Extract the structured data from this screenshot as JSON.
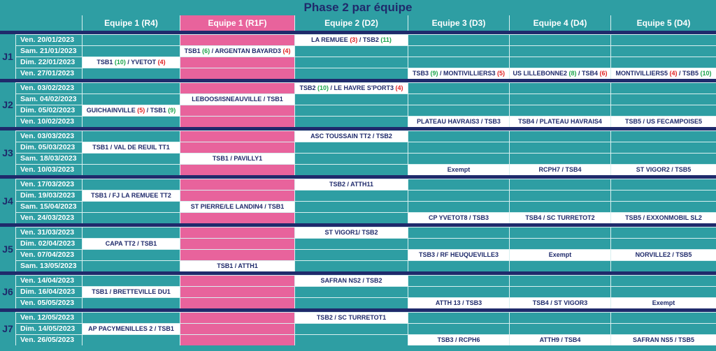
{
  "title": "Phase 2 par équipe",
  "headers": [
    "Equipe 1 (R4)",
    "Equipe 1 (R1F)",
    "Equipe 2 (D2)",
    "Equipe 3 (D3)",
    "Equipe 4 (D4)",
    "Equipe 5 (D4)"
  ],
  "colors": {
    "teal": "#2e9ea3",
    "pink": "#e8639c",
    "navy": "#1f2a6b",
    "win": "#1aa34a",
    "loss": "#e02020"
  },
  "groups": [
    {
      "label": "J1",
      "rows": [
        {
          "date": "Ven. 20/01/2023",
          "cells": [
            "",
            "",
            {
              "t": "LA REMUEE (3) / TSB2 (11)",
              "parts": [
                [
                  "LA REMUEE ",
                  ""
                ],
                [
                  "(3)",
                  "loss"
                ],
                [
                  " / TSB2 ",
                  ""
                ],
                [
                  "(11)",
                  "win"
                ]
              ]
            },
            "",
            "",
            ""
          ]
        },
        {
          "date": "Sam. 21/01/2023",
          "cells": [
            "",
            {
              "t": "TSB1 (6) / ARGENTAN BAYARD3 (4)",
              "parts": [
                [
                  "TSB1 ",
                  ""
                ],
                [
                  "(6)",
                  "win"
                ],
                [
                  " / ARGENTAN BAYARD3 ",
                  ""
                ],
                [
                  "(4)",
                  "loss"
                ]
              ]
            },
            "",
            "",
            "",
            ""
          ]
        },
        {
          "date": "Dim. 22/01/2023",
          "cells": [
            {
              "t": "TSB1 (10) / YVETOT (4)",
              "parts": [
                [
                  "TSB1 ",
                  ""
                ],
                [
                  "(10)",
                  "win"
                ],
                [
                  " / YVETOT ",
                  ""
                ],
                [
                  "(4)",
                  "loss"
                ]
              ]
            },
            "",
            "",
            "",
            "",
            ""
          ]
        },
        {
          "date": "Ven. 27/01/2023",
          "cells": [
            "",
            "",
            "",
            {
              "t": "TSB3 (9) / MONTIVILLIERS3 (5)",
              "parts": [
                [
                  "TSB3 ",
                  ""
                ],
                [
                  "(9)",
                  "win"
                ],
                [
                  " / MONTIVILLIERS3 ",
                  ""
                ],
                [
                  "(5)",
                  "loss"
                ]
              ]
            },
            {
              "t": "US LILLEBONNE2 (8) / TSB4 (6)",
              "parts": [
                [
                  "US LILLEBONNE2 ",
                  ""
                ],
                [
                  "(8)",
                  "win"
                ],
                [
                  " / TSB4 ",
                  ""
                ],
                [
                  "(6)",
                  "loss"
                ]
              ]
            },
            {
              "t": "MONTIVILLIERS5 (4) / TSB5 (10)",
              "parts": [
                [
                  "MONTIVILLIERS5 ",
                  ""
                ],
                [
                  "(4)",
                  "loss"
                ],
                [
                  " / TSB5 ",
                  ""
                ],
                [
                  "(10)",
                  "win"
                ]
              ]
            }
          ]
        }
      ]
    },
    {
      "label": "J2",
      "rows": [
        {
          "date": "Ven. 03/02/2023",
          "cells": [
            "",
            "",
            {
              "t": "TSB2 (10) / LE HAVRE S'PORT3 (4)",
              "parts": [
                [
                  "TSB2 ",
                  ""
                ],
                [
                  "(10)",
                  "win"
                ],
                [
                  " / LE HAVRE S'PORT3 ",
                  ""
                ],
                [
                  "(4)",
                  "loss"
                ]
              ]
            },
            "",
            "",
            ""
          ]
        },
        {
          "date": "Sam. 04/02/2023",
          "cells": [
            "",
            {
              "t": "LEBOOS/ISNEAUVILLE / TSB1"
            },
            "",
            "",
            "",
            ""
          ]
        },
        {
          "date": "Dim. 05/02/2023",
          "cells": [
            {
              "t": "GUICHAINVILLE (5) / TSB1 (9)",
              "parts": [
                [
                  "GUICHAINVILLE ",
                  ""
                ],
                [
                  "(5)",
                  "loss"
                ],
                [
                  " / TSB1 ",
                  ""
                ],
                [
                  "(9)",
                  "win"
                ]
              ]
            },
            "",
            "",
            "",
            "",
            ""
          ]
        },
        {
          "date": "Ven. 10/02/2023",
          "cells": [
            "",
            "",
            "",
            {
              "t": "PLATEAU HAVRAIS3 / TSB3"
            },
            {
              "t": "TSB4 / PLATEAU HAVRAIS4"
            },
            {
              "t": "TSB5 / US FECAMPOISE5"
            }
          ]
        }
      ]
    },
    {
      "label": "J3",
      "rows": [
        {
          "date": "Ven. 03/03/2023",
          "cells": [
            "",
            "",
            {
              "t": "ASC TOUSSAIN TT2 / TSB2"
            },
            "",
            "",
            ""
          ]
        },
        {
          "date": "Dim. 05/03/2023",
          "cells": [
            {
              "t": "TSB1 / VAL DE REUIL TT1"
            },
            "",
            "",
            "",
            "",
            ""
          ]
        },
        {
          "date": "Sam. 18/03/2023",
          "cells": [
            "",
            {
              "t": "TSB1 / PAVILLY1"
            },
            "",
            "",
            "",
            ""
          ]
        },
        {
          "date": "Ven. 10/03/2023",
          "cells": [
            "",
            "",
            "",
            {
              "t": "Exempt"
            },
            {
              "t": "RCPH7 / TSB4"
            },
            {
              "t": "ST VIGOR2 / TSB5"
            }
          ]
        }
      ]
    },
    {
      "label": "J4",
      "rows": [
        {
          "date": "Ven. 17/03/2023",
          "cells": [
            "",
            "",
            {
              "t": "TSB2 / ATTH11"
            },
            "",
            "",
            ""
          ]
        },
        {
          "date": "Dim. 19/03/2023",
          "cells": [
            {
              "t": "TSB1 / FJ LA REMUEE TT2"
            },
            "",
            "",
            "",
            "",
            ""
          ]
        },
        {
          "date": "Sam. 15/04/2023",
          "cells": [
            "",
            {
              "t": "ST PIERRE/LE LANDIN4 / TSB1"
            },
            "",
            "",
            "",
            ""
          ]
        },
        {
          "date": "Ven. 24/03/2023",
          "cells": [
            "",
            "",
            "",
            {
              "t": "CP YVETOT8 / TSB3"
            },
            {
              "t": "TSB4 / SC TURRETOT2"
            },
            {
              "t": "TSB5 / EXXONMOBIL SL2"
            }
          ]
        }
      ]
    },
    {
      "label": "J5",
      "rows": [
        {
          "date": "Ven. 31/03/2023",
          "cells": [
            "",
            "",
            {
              "t": "ST VIGOR1/ TSB2"
            },
            "",
            "",
            ""
          ]
        },
        {
          "date": "Dim. 02/04/2023",
          "cells": [
            {
              "t": "CAPA TT2 / TSB1"
            },
            "",
            "",
            "",
            "",
            ""
          ]
        },
        {
          "date": "Ven. 07/04/2023",
          "cells": [
            "",
            "",
            "",
            {
              "t": "TSB3 / RF HEUQUEVILLE3"
            },
            {
              "t": "Exempt"
            },
            {
              "t": "NORVILLE2 / TSB5"
            }
          ]
        },
        {
          "date": "Sam. 13/05/2023",
          "cells": [
            "",
            {
              "t": "TSB1 / ATTH1"
            },
            "",
            "",
            "",
            ""
          ]
        }
      ]
    },
    {
      "label": "J6",
      "rows": [
        {
          "date": "Ven. 14/04/2023",
          "cells": [
            "",
            "",
            {
              "t": "SAFRAN NS2 / TSB2"
            },
            "",
            "",
            ""
          ]
        },
        {
          "date": "Dim. 16/04/2023",
          "cells": [
            {
              "t": "TSB1 / BRETTEVILLE DU1"
            },
            "",
            "",
            "",
            "",
            ""
          ]
        },
        {
          "date": "Ven. 05/05/2023",
          "cells": [
            "",
            "",
            "",
            {
              "t": "ATTH 13 / TSB3"
            },
            {
              "t": "TSB4 / ST VIGOR3"
            },
            {
              "t": "Exempt"
            }
          ]
        }
      ]
    },
    {
      "label": "J7",
      "rows": [
        {
          "date": "Ven. 12/05/2023",
          "cells": [
            "",
            "",
            {
              "t": "TSB2 / SC TURRETOT1"
            },
            "",
            "",
            ""
          ]
        },
        {
          "date": "Dim. 14/05/2023",
          "cells": [
            {
              "t": "AP PACYMENILLES 2 / TSB1"
            },
            "",
            "",
            "",
            "",
            ""
          ]
        },
        {
          "date": "Ven. 26/05/2023",
          "cells": [
            "",
            "",
            "",
            {
              "t": "TSB3 / RCPH6"
            },
            {
              "t": "ATTH9 / TSB4"
            },
            {
              "t": "SAFRAN NS5 / TSB5"
            }
          ]
        }
      ]
    }
  ]
}
